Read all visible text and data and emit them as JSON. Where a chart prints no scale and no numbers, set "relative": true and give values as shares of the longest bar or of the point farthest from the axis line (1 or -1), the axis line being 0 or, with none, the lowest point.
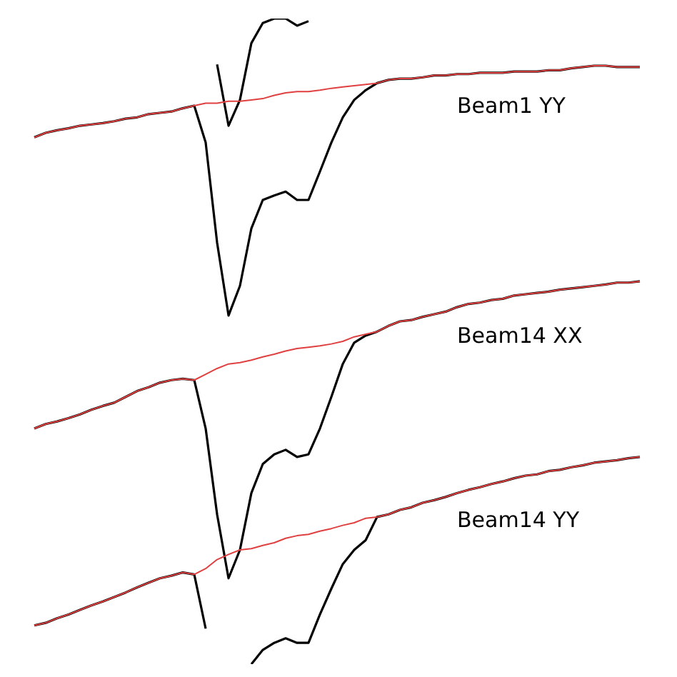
{
  "chart_data": {
    "type": "line",
    "relative": true,
    "categories": [
      null,
      null,
      null,
      null,
      null,
      null,
      null,
      null,
      null,
      null,
      null,
      null,
      null,
      null,
      null,
      null,
      null,
      null,
      null,
      null,
      null,
      null,
      null,
      null,
      null,
      null,
      null,
      null,
      null,
      null,
      null,
      null,
      null,
      null,
      null,
      null,
      null,
      null,
      null,
      null,
      null,
      null,
      null,
      null,
      null,
      null,
      null,
      null,
      null,
      null,
      null,
      null,
      null,
      null
    ],
    "series": [
      {
        "color": "#000000",
        "values": [
          null,
          null,
          null,
          null,
          null,
          null,
          null,
          null,
          null,
          null,
          null,
          null,
          null,
          null,
          null,
          null,
          0.929,
          0.834,
          0.874,
          0.962,
          0.993,
          1.0,
          1.0,
          0.989,
          0.996,
          null,
          null,
          null,
          null,
          null,
          null,
          null,
          null,
          null,
          null,
          null,
          null,
          null,
          null,
          null,
          null,
          null,
          null,
          null,
          null,
          null,
          null,
          null,
          null,
          null,
          null,
          null,
          null,
          null
        ]
      },
      {
        "name": "Beam1 YY",
        "color": "#000000",
        "values": [
          0.816,
          0.823,
          0.827,
          0.83,
          0.834,
          0.836,
          0.838,
          0.841,
          0.845,
          0.847,
          0.852,
          0.854,
          0.856,
          0.861,
          0.865,
          0.808,
          0.653,
          0.54,
          0.586,
          0.675,
          0.719,
          0.726,
          0.732,
          0.719,
          0.719,
          0.763,
          0.808,
          0.847,
          0.874,
          0.889,
          0.9,
          0.905,
          0.907,
          0.907,
          0.909,
          0.912,
          0.912,
          0.914,
          0.914,
          0.916,
          0.916,
          0.916,
          0.918,
          0.918,
          0.918,
          0.92,
          0.92,
          0.923,
          0.925,
          0.927,
          0.927,
          0.925,
          0.925,
          0.925
        ]
      },
      {
        "name": "Beam14 XX",
        "color": "#000000",
        "values": [
          0.365,
          0.372,
          0.376,
          0.381,
          0.387,
          0.394,
          0.4,
          0.405,
          0.414,
          0.423,
          0.429,
          0.436,
          0.44,
          0.442,
          0.44,
          0.365,
          0.232,
          0.133,
          0.177,
          0.265,
          0.31,
          0.325,
          0.332,
          0.321,
          0.325,
          0.365,
          0.414,
          0.465,
          0.498,
          0.509,
          0.515,
          0.524,
          0.531,
          0.533,
          0.538,
          0.542,
          0.546,
          0.553,
          0.558,
          0.56,
          0.564,
          0.566,
          0.571,
          0.573,
          0.575,
          0.577,
          0.58,
          0.582,
          0.584,
          0.586,
          0.588,
          0.591,
          0.591,
          0.593
        ]
      },
      {
        "name": "Beam14 YY",
        "color": "#000000",
        "values": [
          0.06,
          0.064,
          0.071,
          0.077,
          0.084,
          0.091,
          0.097,
          0.104,
          0.111,
          0.119,
          0.126,
          0.133,
          0.137,
          0.142,
          0.139,
          0.055,
          null,
          null,
          null,
          0.0,
          0.022,
          0.033,
          0.04,
          0.033,
          0.033,
          0.077,
          0.117,
          0.155,
          0.177,
          0.192,
          0.228,
          0.232,
          0.239,
          0.243,
          0.25,
          0.254,
          0.259,
          0.265,
          0.27,
          0.274,
          0.279,
          0.283,
          0.288,
          0.292,
          0.294,
          0.299,
          0.301,
          0.305,
          0.308,
          0.312,
          0.314,
          0.316,
          0.319,
          0.321
        ]
      },
      {
        "color": "#e04040",
        "values": [
          0.816,
          0.823,
          0.827,
          0.83,
          0.834,
          0.836,
          0.838,
          0.841,
          0.845,
          0.847,
          0.852,
          0.854,
          0.856,
          0.861,
          0.865,
          0.869,
          0.869,
          0.872,
          0.872,
          0.874,
          0.876,
          0.881,
          0.885,
          0.887,
          0.887,
          0.889,
          0.892,
          0.894,
          0.896,
          0.898,
          0.9,
          0.905,
          0.907,
          0.907,
          0.909,
          0.912,
          0.912,
          0.914,
          0.914,
          0.916,
          0.916,
          0.916,
          0.918,
          0.918,
          0.918,
          0.92,
          0.92,
          0.923,
          0.925,
          0.927,
          0.927,
          0.925,
          0.925,
          0.925
        ]
      },
      {
        "color": "#e04040",
        "values": [
          0.365,
          0.372,
          0.376,
          0.381,
          0.387,
          0.394,
          0.4,
          0.405,
          0.414,
          0.423,
          0.429,
          0.436,
          0.44,
          0.442,
          0.44,
          0.449,
          0.458,
          0.465,
          0.467,
          0.471,
          0.476,
          0.48,
          0.485,
          0.489,
          0.491,
          0.493,
          0.496,
          0.5,
          0.507,
          0.511,
          0.515,
          0.524,
          0.531,
          0.533,
          0.538,
          0.542,
          0.546,
          0.553,
          0.558,
          0.56,
          0.564,
          0.566,
          0.571,
          0.573,
          0.575,
          0.577,
          0.58,
          0.582,
          0.584,
          0.586,
          0.588,
          0.591,
          0.591,
          0.593
        ]
      },
      {
        "color": "#e04040",
        "values": [
          0.06,
          0.064,
          0.071,
          0.077,
          0.084,
          0.091,
          0.097,
          0.104,
          0.111,
          0.119,
          0.126,
          0.133,
          0.137,
          0.142,
          0.139,
          0.148,
          0.162,
          0.17,
          0.177,
          0.179,
          0.184,
          0.188,
          0.195,
          0.199,
          0.201,
          0.206,
          0.21,
          0.215,
          0.219,
          0.226,
          0.228,
          0.232,
          0.239,
          0.243,
          0.25,
          0.254,
          0.259,
          0.265,
          0.27,
          0.274,
          0.279,
          0.283,
          0.288,
          0.292,
          0.294,
          0.299,
          0.301,
          0.305,
          0.308,
          0.312,
          0.314,
          0.316,
          0.319,
          0.321
        ]
      }
    ]
  }
}
